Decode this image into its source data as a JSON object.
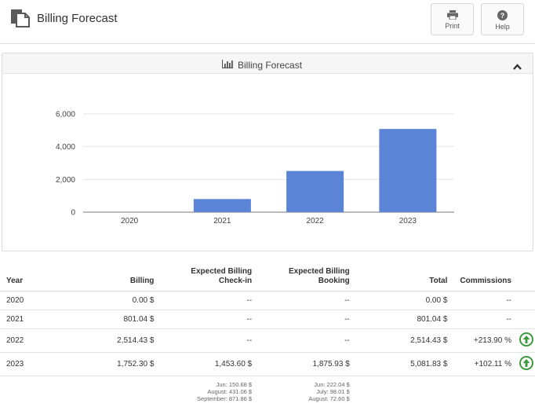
{
  "header": {
    "title": "Billing Forecast",
    "print_label": "Print",
    "help_label": "Help"
  },
  "panel": {
    "title": "Billing Forecast"
  },
  "chart_data": {
    "type": "bar",
    "categories": [
      "2020",
      "2021",
      "2022",
      "2023"
    ],
    "values": [
      0,
      801.04,
      2514.43,
      5081.83
    ],
    "yticks": [
      "0",
      "2,000",
      "4,000",
      "6,000"
    ],
    "ylim": [
      0,
      6000
    ],
    "bar_color": "#5b84d6",
    "grid": true
  },
  "table": {
    "headers": {
      "year": "Year",
      "billing": "Billing",
      "checkin": "Expected Billing Check-in",
      "booking": "Expected Billing Booking",
      "total": "Total",
      "commissions": "Commissions"
    },
    "rows": [
      {
        "year": "2020",
        "billing": "0.00 $",
        "checkin": "--",
        "booking": "--",
        "total": "0.00 $",
        "commissions": "--"
      },
      {
        "year": "2021",
        "billing": "801.04 $",
        "checkin": "--",
        "booking": "--",
        "total": "801.04 $",
        "commissions": "--"
      },
      {
        "year": "2022",
        "billing": "2,514.43 $",
        "checkin": "--",
        "booking": "--",
        "total": "2,514.43 $",
        "commissions": "+213.90 %"
      },
      {
        "year": "2023",
        "billing": "1,752.30 $",
        "checkin": "1,453.60 $",
        "booking": "1,875.93 $",
        "total": "5,081.83 $",
        "commissions": "+102.11 %"
      }
    ],
    "detail_checkin": [
      "Jun: 150.68 $",
      "August: 431.06 $",
      "September: 871.86 $"
    ],
    "detail_booking": [
      "Jun: 222.04 $",
      "July: 98.01 $",
      "August: 72.60 $"
    ]
  },
  "colors": {
    "arrow_green": "#3e9a3e"
  }
}
